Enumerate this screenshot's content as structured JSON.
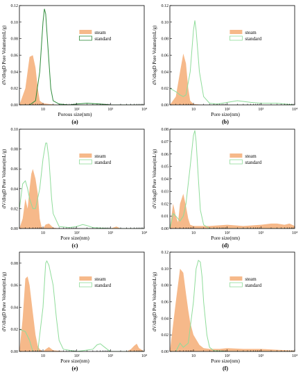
{
  "colors": {
    "steam_fill": "#f6b98a",
    "standard_line": "#8fdc9a",
    "standard_line_dark": "#2e8b3a"
  },
  "chart_data": [
    {
      "type": "area",
      "panel_label": "(a)",
      "xlabel": "Porous size(nm)",
      "ylabel": "dV/dlogD Pore Volume(mL/g)",
      "xscale": "log",
      "xlim": [
        2,
        10000
      ],
      "ylim": [
        0,
        0.12
      ],
      "yticks": [
        "0.00",
        "0.02",
        "0.04",
        "0.06",
        "0.08",
        "0.10",
        "0.12"
      ],
      "xticks": [
        "10",
        "10²",
        "10³",
        "10⁴"
      ],
      "legend": [
        "steam",
        "standard"
      ],
      "legend_position": "right",
      "series": [
        {
          "name": "steam",
          "x": [
            2,
            3,
            4,
            5,
            6,
            7,
            8,
            10,
            15,
            30,
            100
          ],
          "y": [
            0.0,
            0.02,
            0.058,
            0.06,
            0.045,
            0.02,
            0.005,
            0.002,
            0.001,
            0.0,
            0.0
          ]
        },
        {
          "name": "standard",
          "x": [
            2,
            4,
            6,
            8,
            10,
            11,
            12,
            14,
            17,
            20,
            30,
            60,
            100,
            200,
            500,
            1000,
            10000
          ],
          "y": [
            0.0,
            0.0,
            0.005,
            0.04,
            0.1,
            0.116,
            0.11,
            0.07,
            0.02,
            0.005,
            0.001,
            0.0,
            0.001,
            0.002,
            0.001,
            0.0,
            0.0
          ]
        }
      ]
    },
    {
      "type": "area",
      "panel_label": "(b)",
      "xlabel": "Pore size(nm)",
      "ylabel": "dV/dlogD Pore Volume(mL/g)",
      "xscale": "log",
      "xlim": [
        2,
        10000
      ],
      "ylim": [
        0,
        0.12
      ],
      "yticks": [
        "0.00",
        "0.02",
        "0.04",
        "0.06",
        "0.08",
        "0.10",
        "0.12"
      ],
      "xticks": [
        "10",
        "10²",
        "10³",
        "10⁴"
      ],
      "legend": [
        "steam",
        "standard"
      ],
      "legend_position": "right",
      "series": [
        {
          "name": "steam",
          "x": [
            2,
            3,
            4,
            5,
            6,
            7,
            8,
            10,
            20,
            100
          ],
          "y": [
            0.0,
            0.01,
            0.04,
            0.062,
            0.05,
            0.02,
            0.005,
            0.001,
            0.0,
            0.0
          ]
        },
        {
          "name": "standard",
          "x": [
            2,
            3,
            4,
            5,
            6,
            8,
            10,
            11,
            12,
            15,
            20,
            30,
            50,
            100,
            200,
            500,
            1000,
            3000,
            10000
          ],
          "y": [
            0.02,
            0.016,
            0.012,
            0.01,
            0.012,
            0.04,
            0.09,
            0.102,
            0.09,
            0.04,
            0.01,
            0.002,
            0.001,
            0.003,
            0.005,
            0.003,
            0.002,
            0.002,
            0.0
          ]
        }
      ]
    },
    {
      "type": "area",
      "panel_label": "(c)",
      "xlabel": "Pore size(nm)",
      "ylabel": "dV/dlogD Pore Volume(mL/g)",
      "xscale": "log",
      "xlim": [
        2,
        10000
      ],
      "ylim": [
        0,
        0.1
      ],
      "yticks": [
        "0.00",
        "0.02",
        "0.04",
        "0.06",
        "0.08",
        "0.10"
      ],
      "xticks": [
        "10",
        "10²",
        "10³",
        "10⁴"
      ],
      "legend": [
        "steam",
        "standard"
      ],
      "legend_position": "right",
      "series": [
        {
          "name": "steam",
          "x": [
            2,
            2.5,
            3,
            3.5,
            4,
            4.5,
            5,
            6,
            7,
            8,
            9,
            10,
            12,
            15,
            20,
            30,
            100,
            1000,
            1500,
            2000,
            10000
          ],
          "y": [
            0.0,
            0.01,
            0.03,
            0.02,
            0.04,
            0.055,
            0.06,
            0.05,
            0.035,
            0.01,
            0.002,
            0.0,
            0.004,
            0.005,
            0.001,
            0.0,
            0.0,
            0.0,
            0.002,
            0.0,
            0.0
          ]
        },
        {
          "name": "standard",
          "x": [
            2,
            2.5,
            3,
            3.5,
            4,
            5,
            6,
            8,
            10,
            12,
            13,
            15,
            18,
            20,
            30,
            60,
            100,
            150,
            200,
            300,
            1000,
            10000
          ],
          "y": [
            0.02,
            0.045,
            0.048,
            0.04,
            0.03,
            0.02,
            0.02,
            0.04,
            0.07,
            0.086,
            0.086,
            0.07,
            0.03,
            0.015,
            0.002,
            0.001,
            0.002,
            0.004,
            0.003,
            0.001,
            0.0,
            0.0
          ]
        }
      ]
    },
    {
      "type": "area",
      "panel_label": "(d)",
      "xlabel": "Pore size(nm)",
      "ylabel": "dV/dlogD Pore Volume(mL/g)",
      "xscale": "log",
      "xlim": [
        2,
        10000
      ],
      "ylim": [
        0,
        0.08
      ],
      "yticks": [
        "0.00",
        "0.01",
        "0.02",
        "0.03",
        "0.04",
        "0.05",
        "0.06",
        "0.07",
        "0.08"
      ],
      "xticks": [
        "10",
        "10²",
        "10³",
        "10⁴"
      ],
      "legend": [
        "steam",
        "standard"
      ],
      "legend_position": "right",
      "series": [
        {
          "name": "steam",
          "x": [
            2,
            2.5,
            3,
            3.5,
            4,
            5,
            6,
            7,
            8,
            10,
            15,
            30,
            100,
            300,
            1000,
            2000,
            3000,
            5000,
            7000,
            10000
          ],
          "y": [
            0.0,
            0.02,
            0.01,
            0.005,
            0.02,
            0.028,
            0.018,
            0.008,
            0.003,
            0.002,
            0.002,
            0.002,
            0.003,
            0.002,
            0.003,
            0.004,
            0.004,
            0.003,
            0.004,
            0.002
          ]
        },
        {
          "name": "standard",
          "x": [
            2,
            2.5,
            3,
            4,
            5,
            6,
            8,
            10,
            11,
            12,
            14,
            16,
            20,
            30,
            100,
            10000
          ],
          "y": [
            0.0,
            0.012,
            0.01,
            0.006,
            0.01,
            0.02,
            0.05,
            0.075,
            0.079,
            0.07,
            0.04,
            0.015,
            0.003,
            0.0,
            0.0,
            0.0
          ]
        }
      ]
    },
    {
      "type": "area",
      "panel_label": "(e)",
      "xlabel": "Pore size(nm)",
      "ylabel": "dV/dlogD Pore Volume(mL/g)",
      "xscale": "log",
      "xlim": [
        2,
        10000
      ],
      "ylim": [
        0,
        0.09
      ],
      "yticks": [
        "0.00",
        "0.02",
        "0.04",
        "0.06",
        "0.08"
      ],
      "xticks": [
        "10",
        "10²",
        "10³",
        "10⁴"
      ],
      "legend": [
        "steam",
        "standard"
      ],
      "legend_position": "right",
      "series": [
        {
          "name": "steam",
          "x": [
            2,
            2.5,
            3,
            3.5,
            4,
            5,
            6,
            7,
            8,
            10,
            12,
            15,
            20,
            50,
            100,
            1000,
            3000,
            4000,
            5000,
            6000,
            7000,
            10000
          ],
          "y": [
            0.0,
            0.03,
            0.066,
            0.068,
            0.06,
            0.035,
            0.015,
            0.005,
            0.002,
            0.0,
            0.002,
            0.004,
            0.001,
            0.0,
            0.0,
            0.0,
            0.0,
            0.002,
            0.005,
            0.007,
            0.003,
            0.0
          ]
        },
        {
          "name": "standard",
          "x": [
            2,
            3,
            4,
            5,
            7,
            10,
            12,
            13,
            15,
            20,
            25,
            30,
            40,
            100,
            300,
            400,
            500,
            600,
            800,
            1000,
            10000
          ],
          "y": [
            0.02,
            0.018,
            0.01,
            0.0,
            0.0,
            0.04,
            0.08,
            0.082,
            0.078,
            0.06,
            0.03,
            0.01,
            0.002,
            0.0,
            0.002,
            0.006,
            0.007,
            0.005,
            0.002,
            0.0,
            0.0
          ]
        }
      ]
    },
    {
      "type": "area",
      "panel_label": "(f)",
      "xlabel": "Pore size(nm)",
      "ylabel": "dV/dlogD Pore Volume(mL/g)",
      "xscale": "log",
      "xlim": [
        2,
        10000
      ],
      "ylim": [
        0,
        0.12
      ],
      "yticks": [
        "0.00",
        "0.02",
        "0.04",
        "0.06",
        "0.08",
        "0.10",
        "0.12"
      ],
      "xticks": [
        "10",
        "10²",
        "10³",
        "10⁴"
      ],
      "legend": [
        "steam",
        "standard"
      ],
      "legend_position": "right",
      "series": [
        {
          "name": "steam",
          "x": [
            2,
            3,
            4,
            5,
            6,
            7,
            8,
            10,
            15,
            20,
            30,
            60,
            100,
            300,
            1000,
            3000,
            10000
          ],
          "y": [
            0.0,
            0.06,
            0.1,
            0.095,
            0.07,
            0.05,
            0.035,
            0.02,
            0.008,
            0.004,
            0.003,
            0.003,
            0.004,
            0.003,
            0.003,
            0.002,
            0.001
          ]
        },
        {
          "name": "standard",
          "x": [
            2,
            3,
            4,
            5,
            7,
            10,
            12,
            14,
            16,
            18,
            20,
            25,
            30,
            40,
            100,
            10000
          ],
          "y": [
            0.0,
            0.0,
            0.01,
            0.005,
            0.01,
            0.06,
            0.1,
            0.11,
            0.108,
            0.09,
            0.06,
            0.02,
            0.005,
            0.001,
            0.0,
            0.0
          ]
        }
      ]
    }
  ]
}
